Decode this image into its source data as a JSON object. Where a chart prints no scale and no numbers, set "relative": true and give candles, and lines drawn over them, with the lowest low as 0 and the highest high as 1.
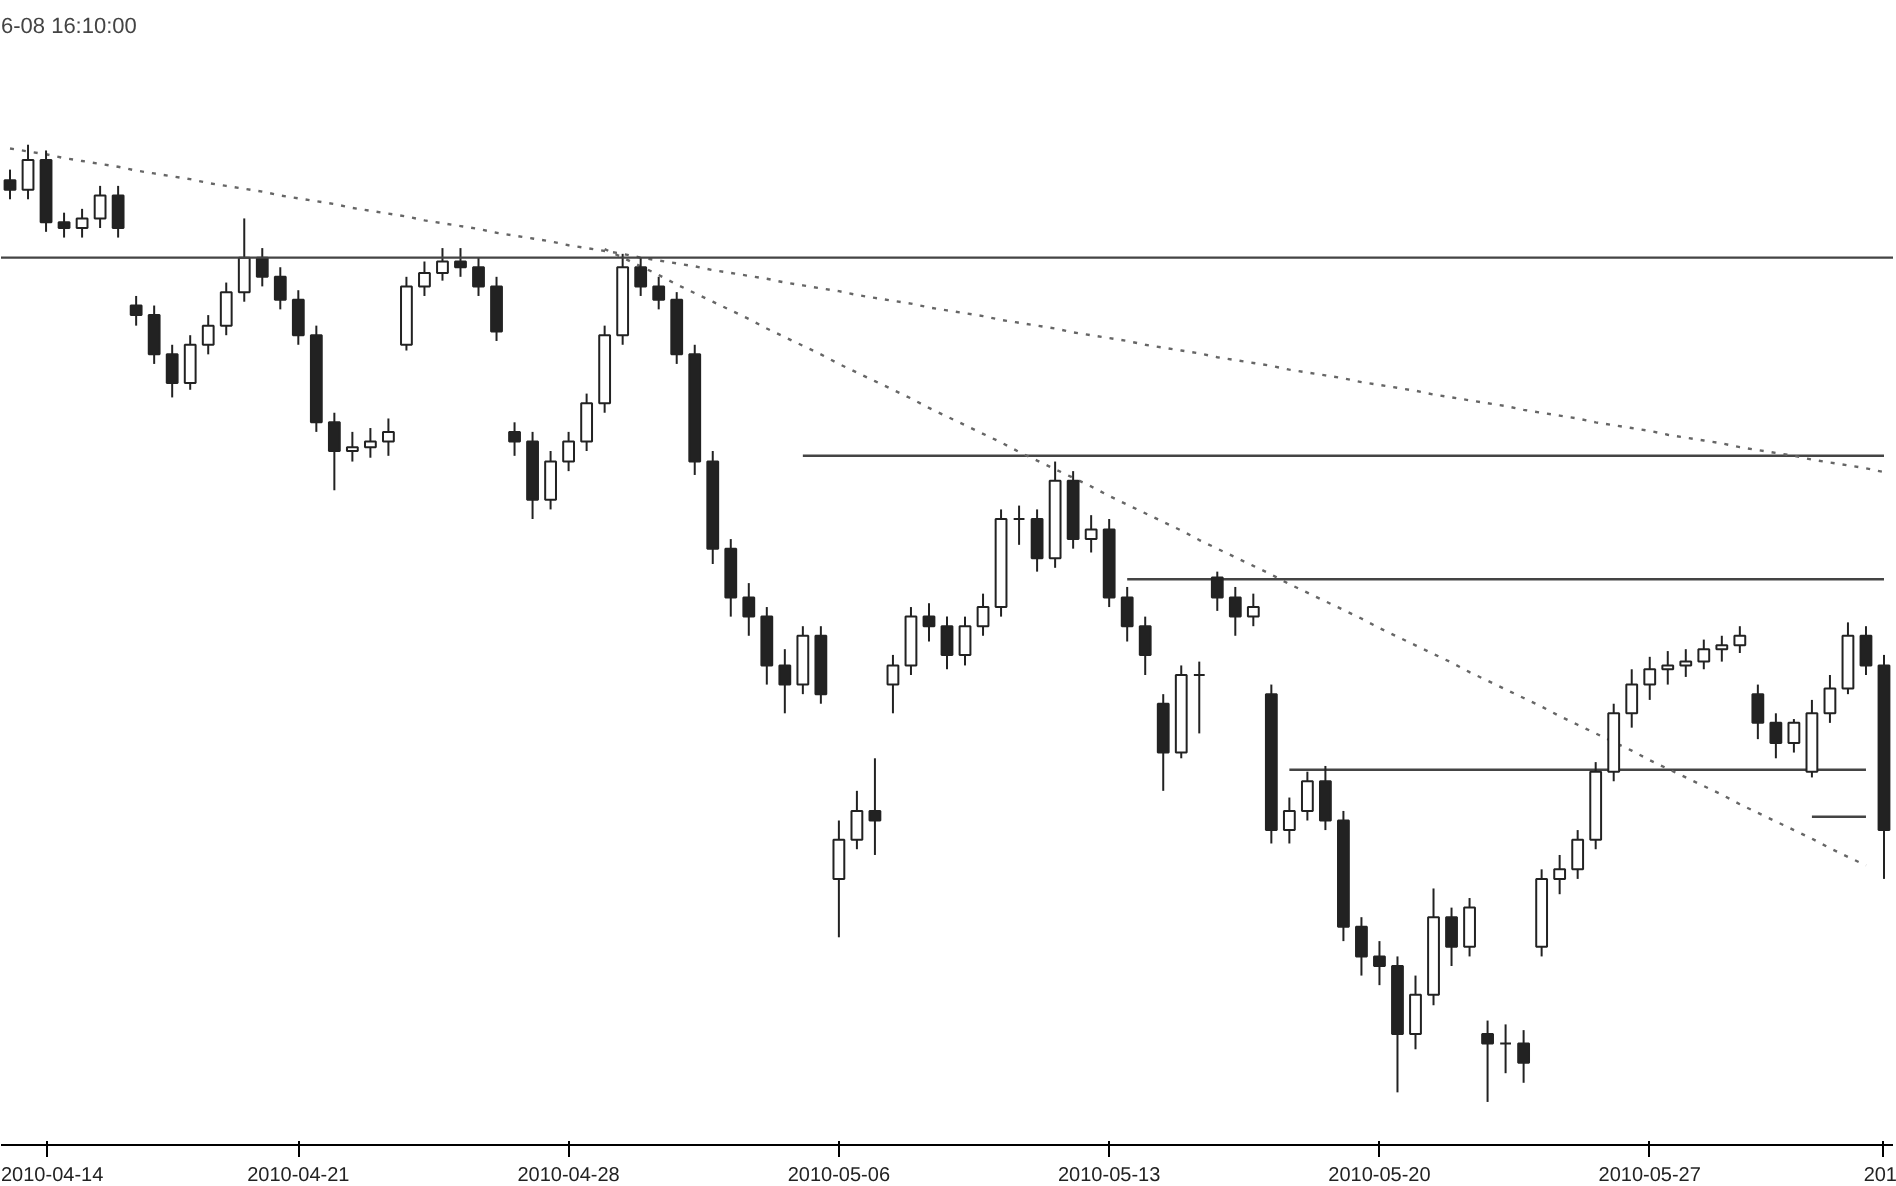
{
  "chart_data": {
    "type": "candlestick",
    "title": "6-08 16:10:00",
    "relative": true,
    "color": "#222222",
    "categories": [
      null,
      null,
      "2010-04-14",
      null,
      null,
      null,
      null,
      null,
      null,
      null,
      null,
      null,
      null,
      null,
      null,
      null,
      "2010-04-21",
      null,
      null,
      null,
      null,
      null,
      null,
      null,
      null,
      null,
      null,
      null,
      null,
      null,
      null,
      "2010-04-28",
      null,
      null,
      null,
      null,
      null,
      null,
      null,
      null,
      null,
      null,
      null,
      null,
      null,
      null,
      "2010-05-06",
      null,
      null,
      null,
      null,
      null,
      null,
      null,
      null,
      null,
      null,
      null,
      null,
      null,
      null,
      "2010-05-13",
      null,
      null,
      null,
      null,
      null,
      null,
      null,
      null,
      null,
      null,
      null,
      null,
      null,
      null,
      "2010-05-20",
      null,
      null,
      null,
      null,
      null,
      null,
      null,
      null,
      null,
      null,
      null,
      null,
      null,
      null,
      "2010-05-27",
      null,
      null,
      null,
      null,
      null,
      null,
      null,
      null,
      null,
      null,
      null,
      null,
      "201"
    ],
    "ohlc": [
      [
        0.963,
        0.974,
        0.943,
        0.953
      ],
      [
        0.953,
        1.0,
        0.943,
        0.984
      ],
      [
        0.984,
        0.994,
        0.909,
        0.919
      ],
      [
        0.919,
        0.929,
        0.903,
        0.913
      ],
      [
        0.913,
        0.933,
        0.903,
        0.923
      ],
      [
        0.923,
        0.957,
        0.913,
        0.947
      ],
      [
        0.947,
        0.957,
        0.903,
        0.913
      ],
      [
        0.832,
        0.842,
        0.811,
        0.822
      ],
      [
        0.822,
        0.832,
        0.771,
        0.781
      ],
      [
        0.781,
        0.791,
        0.736,
        0.751
      ],
      [
        0.751,
        0.801,
        0.744,
        0.791
      ],
      [
        0.791,
        0.822,
        0.781,
        0.811
      ],
      [
        0.811,
        0.856,
        0.801,
        0.846
      ],
      [
        0.846,
        0.923,
        0.836,
        0.882
      ],
      [
        0.882,
        0.892,
        0.852,
        0.862
      ],
      [
        0.862,
        0.872,
        0.828,
        0.838
      ],
      [
        0.838,
        0.848,
        0.791,
        0.801
      ],
      [
        0.801,
        0.811,
        0.7,
        0.71
      ],
      [
        0.71,
        0.72,
        0.639,
        0.68
      ],
      [
        0.68,
        0.7,
        0.669,
        0.684
      ],
      [
        0.684,
        0.704,
        0.673,
        0.69
      ],
      [
        0.69,
        0.714,
        0.675,
        0.7
      ],
      [
        0.791,
        0.862,
        0.785,
        0.852
      ],
      [
        0.852,
        0.878,
        0.842,
        0.866
      ],
      [
        0.866,
        0.892,
        0.858,
        0.878
      ],
      [
        0.878,
        0.892,
        0.862,
        0.872
      ],
      [
        0.872,
        0.882,
        0.842,
        0.852
      ],
      [
        0.852,
        0.862,
        0.795,
        0.805
      ],
      [
        0.7,
        0.71,
        0.675,
        0.69
      ],
      [
        0.69,
        0.7,
        0.609,
        0.629
      ],
      [
        0.629,
        0.68,
        0.619,
        0.669
      ],
      [
        0.669,
        0.7,
        0.659,
        0.69
      ],
      [
        0.69,
        0.74,
        0.68,
        0.73
      ],
      [
        0.73,
        0.811,
        0.72,
        0.801
      ],
      [
        0.801,
        0.886,
        0.791,
        0.872
      ],
      [
        0.872,
        0.882,
        0.842,
        0.852
      ],
      [
        0.852,
        0.862,
        0.828,
        0.838
      ],
      [
        0.838,
        0.846,
        0.771,
        0.781
      ],
      [
        0.781,
        0.791,
        0.655,
        0.669
      ],
      [
        0.669,
        0.68,
        0.562,
        0.578
      ],
      [
        0.578,
        0.588,
        0.507,
        0.527
      ],
      [
        0.527,
        0.542,
        0.487,
        0.507
      ],
      [
        0.507,
        0.517,
        0.436,
        0.456
      ],
      [
        0.456,
        0.473,
        0.406,
        0.436
      ],
      [
        0.436,
        0.497,
        0.426,
        0.487
      ],
      [
        0.487,
        0.497,
        0.416,
        0.426
      ],
      [
        0.233,
        0.294,
        0.172,
        0.274
      ],
      [
        0.274,
        0.325,
        0.264,
        0.304
      ],
      [
        0.304,
        0.359,
        0.258,
        0.294
      ],
      [
        0.436,
        0.467,
        0.406,
        0.456
      ],
      [
        0.456,
        0.517,
        0.446,
        0.507
      ],
      [
        0.507,
        0.521,
        0.481,
        0.497
      ],
      [
        0.497,
        0.507,
        0.452,
        0.467
      ],
      [
        0.467,
        0.507,
        0.456,
        0.497
      ],
      [
        0.497,
        0.531,
        0.487,
        0.517
      ],
      [
        0.517,
        0.619,
        0.507,
        0.609
      ],
      [
        0.609,
        0.623,
        0.582,
        0.609
      ],
      [
        0.609,
        0.619,
        0.554,
        0.568
      ],
      [
        0.568,
        0.669,
        0.558,
        0.649
      ],
      [
        0.649,
        0.659,
        0.578,
        0.588
      ],
      [
        0.588,
        0.613,
        0.574,
        0.598
      ],
      [
        0.598,
        0.609,
        0.517,
        0.527
      ],
      [
        0.527,
        0.538,
        0.481,
        0.497
      ],
      [
        0.497,
        0.507,
        0.446,
        0.467
      ],
      [
        0.416,
        0.426,
        0.325,
        0.365
      ],
      [
        0.365,
        0.456,
        0.359,
        0.446
      ],
      [
        0.446,
        0.46,
        0.385,
        0.446
      ],
      [
        0.548,
        0.554,
        0.513,
        0.527
      ],
      [
        0.527,
        0.538,
        0.487,
        0.507
      ],
      [
        0.507,
        0.531,
        0.497,
        0.517
      ],
      [
        0.426,
        0.436,
        0.27,
        0.284
      ],
      [
        0.284,
        0.318,
        0.27,
        0.304
      ],
      [
        0.304,
        0.345,
        0.294,
        0.335
      ],
      [
        0.335,
        0.351,
        0.284,
        0.294
      ],
      [
        0.294,
        0.304,
        0.168,
        0.183
      ],
      [
        0.183,
        0.193,
        0.132,
        0.152
      ],
      [
        0.152,
        0.168,
        0.122,
        0.142
      ],
      [
        0.142,
        0.152,
        0.01,
        0.071
      ],
      [
        0.071,
        0.132,
        0.055,
        0.112
      ],
      [
        0.112,
        0.223,
        0.101,
        0.193
      ],
      [
        0.193,
        0.203,
        0.142,
        0.162
      ],
      [
        0.162,
        0.213,
        0.152,
        0.203
      ],
      [
        0.071,
        0.085,
        0.0,
        0.061
      ],
      [
        0.061,
        0.081,
        0.03,
        0.061
      ],
      [
        0.061,
        0.075,
        0.02,
        0.041
      ],
      [
        0.162,
        0.243,
        0.152,
        0.233
      ],
      [
        0.233,
        0.258,
        0.217,
        0.243
      ],
      [
        0.243,
        0.284,
        0.233,
        0.274
      ],
      [
        0.274,
        0.355,
        0.264,
        0.345
      ],
      [
        0.345,
        0.416,
        0.335,
        0.406
      ],
      [
        0.406,
        0.452,
        0.391,
        0.436
      ],
      [
        0.436,
        0.465,
        0.42,
        0.452
      ],
      [
        0.452,
        0.471,
        0.436,
        0.456
      ],
      [
        0.456,
        0.473,
        0.444,
        0.46
      ],
      [
        0.46,
        0.483,
        0.452,
        0.473
      ],
      [
        0.473,
        0.487,
        0.46,
        0.477
      ],
      [
        0.477,
        0.497,
        0.469,
        0.487
      ],
      [
        0.426,
        0.436,
        0.379,
        0.396
      ],
      [
        0.396,
        0.406,
        0.359,
        0.375
      ],
      [
        0.375,
        0.4,
        0.365,
        0.396
      ],
      [
        0.345,
        0.42,
        0.339,
        0.406
      ],
      [
        0.406,
        0.446,
        0.396,
        0.432
      ],
      [
        0.432,
        0.501,
        0.426,
        0.487
      ],
      [
        0.487,
        0.497,
        0.446,
        0.456
      ],
      [
        0.456,
        0.467,
        0.233,
        0.284
      ]
    ],
    "series": [
      {
        "type": "line",
        "color": "#444444",
        "line_style": "solid",
        "values": [
          null,
          null,
          null,
          null,
          null,
          null,
          null,
          null,
          null,
          null,
          null,
          null,
          null,
          null,
          null,
          null,
          null,
          null,
          null,
          null,
          null,
          null,
          null,
          null,
          null,
          null,
          null,
          null,
          null,
          null,
          null,
          null,
          null,
          null,
          null,
          null,
          null,
          null,
          null,
          null,
          null,
          null,
          null,
          null,
          0.675,
          0.675,
          0.675,
          0.675,
          0.675,
          0.675,
          0.675,
          0.675,
          0.675,
          0.675,
          0.675,
          0.675,
          0.675,
          0.675,
          0.675,
          0.675,
          0.675,
          0.675,
          0.675,
          0.675,
          0.675,
          0.675,
          0.675,
          0.675,
          0.675,
          0.675,
          0.675,
          0.675,
          0.675,
          0.675,
          0.675,
          0.675,
          0.675,
          0.675,
          0.675,
          0.675,
          0.675,
          0.675,
          0.675,
          0.675,
          0.675,
          0.675,
          0.675,
          0.675,
          0.675,
          0.675,
          0.675,
          0.675,
          0.675,
          0.675,
          0.675,
          0.675,
          0.675,
          0.675,
          0.675,
          0.675,
          0.675,
          0.675,
          0.675,
          0.675,
          0.675
        ]
      },
      {
        "type": "line",
        "color": "#444444",
        "line_style": "solid",
        "values": [
          null,
          null,
          null,
          null,
          null,
          null,
          null,
          null,
          null,
          null,
          null,
          null,
          null,
          null,
          null,
          null,
          null,
          null,
          null,
          null,
          null,
          null,
          null,
          null,
          null,
          null,
          null,
          null,
          null,
          null,
          null,
          null,
          null,
          null,
          null,
          null,
          null,
          null,
          null,
          null,
          null,
          null,
          null,
          null,
          null,
          null,
          null,
          null,
          null,
          null,
          null,
          null,
          null,
          null,
          null,
          null,
          null,
          null,
          null,
          null,
          null,
          null,
          0.546,
          0.546,
          0.546,
          0.546,
          0.546,
          0.546,
          0.546,
          0.546,
          0.546,
          0.546,
          0.546,
          0.546,
          0.546,
          0.546,
          0.546,
          0.546,
          0.546,
          0.546,
          0.546,
          0.546,
          0.546,
          0.546,
          0.546,
          0.546,
          0.546,
          0.546,
          0.546,
          0.546,
          0.546,
          0.546,
          0.546,
          0.546,
          0.546,
          0.546,
          0.546,
          0.546,
          0.546,
          0.546,
          0.546,
          0.546,
          0.546,
          0.546,
          0.546
        ]
      },
      {
        "type": "line",
        "color": "#444444",
        "line_style": "solid",
        "values": [
          null,
          null,
          null,
          null,
          null,
          null,
          null,
          null,
          null,
          null,
          null,
          null,
          null,
          null,
          null,
          null,
          null,
          null,
          null,
          null,
          null,
          null,
          null,
          null,
          null,
          null,
          null,
          null,
          null,
          null,
          null,
          null,
          null,
          null,
          null,
          null,
          null,
          null,
          null,
          null,
          null,
          null,
          null,
          null,
          null,
          null,
          null,
          null,
          null,
          null,
          null,
          null,
          null,
          null,
          null,
          null,
          null,
          null,
          null,
          null,
          null,
          null,
          null,
          null,
          null,
          null,
          null,
          null,
          null,
          null,
          null,
          0.347,
          0.347,
          0.347,
          0.347,
          0.347,
          0.347,
          0.347,
          0.347,
          0.347,
          0.347,
          0.347,
          0.347,
          0.347,
          0.347,
          0.347,
          0.347,
          0.347,
          0.347,
          0.347,
          0.347,
          0.347,
          0.347,
          0.347,
          0.347,
          0.347,
          0.347,
          0.347,
          0.347,
          0.347,
          0.347,
          0.347,
          0.347,
          0.347,
          null
        ]
      },
      {
        "type": "line",
        "color": "#444444",
        "line_style": "solid",
        "values": [
          null,
          null,
          null,
          null,
          null,
          null,
          null,
          null,
          null,
          null,
          null,
          null,
          null,
          null,
          null,
          null,
          null,
          null,
          null,
          null,
          null,
          null,
          null,
          null,
          null,
          null,
          null,
          null,
          null,
          null,
          null,
          null,
          null,
          null,
          null,
          null,
          null,
          null,
          null,
          null,
          null,
          null,
          null,
          null,
          null,
          null,
          null,
          null,
          null,
          null,
          null,
          null,
          null,
          null,
          null,
          null,
          null,
          null,
          null,
          null,
          null,
          null,
          null,
          null,
          null,
          null,
          null,
          null,
          null,
          null,
          null,
          null,
          null,
          null,
          null,
          null,
          null,
          null,
          null,
          null,
          null,
          null,
          null,
          null,
          null,
          null,
          null,
          null,
          null,
          null,
          null,
          null,
          null,
          null,
          null,
          null,
          null,
          null,
          null,
          null,
          0.298,
          0.298,
          0.298,
          0.298,
          null
        ]
      },
      {
        "type": "line",
        "color": "#666666",
        "line_style": "dotted",
        "values": [
          0.996,
          0.993,
          0.99,
          0.986,
          0.983,
          0.98,
          0.977,
          0.973,
          0.97,
          0.967,
          0.964,
          0.96,
          0.957,
          0.954,
          0.951,
          0.947,
          0.944,
          0.941,
          0.938,
          0.934,
          0.931,
          0.928,
          0.925,
          0.921,
          0.918,
          0.915,
          0.912,
          0.908,
          0.905,
          0.902,
          0.899,
          0.895,
          0.892,
          0.889,
          0.886,
          0.882,
          0.879,
          0.876,
          0.873,
          0.869,
          0.866,
          0.863,
          0.86,
          0.856,
          0.853,
          0.85,
          0.847,
          0.843,
          0.84,
          0.837,
          0.834,
          0.83,
          0.827,
          0.824,
          0.821,
          0.817,
          0.814,
          0.811,
          0.808,
          0.804,
          0.801,
          0.798,
          0.795,
          0.791,
          0.788,
          0.785,
          0.782,
          0.778,
          0.775,
          0.772,
          0.769,
          0.765,
          0.762,
          0.759,
          0.756,
          0.752,
          0.749,
          0.746,
          0.743,
          0.739,
          0.736,
          0.733,
          0.73,
          0.727,
          0.723,
          0.72,
          0.717,
          0.714,
          0.71,
          0.707,
          0.704,
          0.701,
          0.697,
          0.694,
          0.691,
          0.688,
          0.684,
          0.681,
          0.678,
          0.675,
          0.671,
          0.668,
          0.665,
          0.662,
          0.658
        ]
      },
      {
        "type": "line",
        "color": "#666666",
        "line_style": "dotted",
        "values": [
          null,
          null,
          null,
          null,
          null,
          null,
          null,
          null,
          null,
          null,
          null,
          null,
          null,
          null,
          null,
          null,
          null,
          null,
          null,
          null,
          null,
          null,
          null,
          null,
          null,
          null,
          null,
          null,
          null,
          null,
          null,
          null,
          null,
          0.891,
          0.882,
          0.873,
          0.864,
          0.854,
          0.845,
          0.836,
          0.827,
          0.818,
          0.808,
          0.799,
          0.79,
          0.781,
          0.771,
          0.762,
          0.753,
          0.744,
          0.735,
          0.725,
          0.716,
          0.707,
          0.698,
          0.689,
          0.679,
          0.67,
          0.661,
          0.652,
          0.643,
          0.633,
          0.624,
          0.615,
          0.606,
          0.597,
          0.587,
          0.578,
          0.569,
          0.56,
          0.551,
          0.541,
          0.532,
          0.523,
          0.514,
          0.505,
          0.495,
          0.486,
          0.477,
          0.468,
          0.459,
          0.449,
          0.44,
          0.431,
          0.422,
          0.413,
          0.403,
          0.394,
          0.385,
          0.376,
          0.367,
          0.357,
          0.348,
          0.339,
          0.33,
          0.321,
          0.311,
          0.302,
          0.293,
          0.284,
          0.275,
          0.265,
          0.256,
          0.247,
          null
        ]
      }
    ],
    "ref_lines": [
      {
        "axis": "y",
        "value": 0.882,
        "color": "#444444"
      }
    ]
  }
}
